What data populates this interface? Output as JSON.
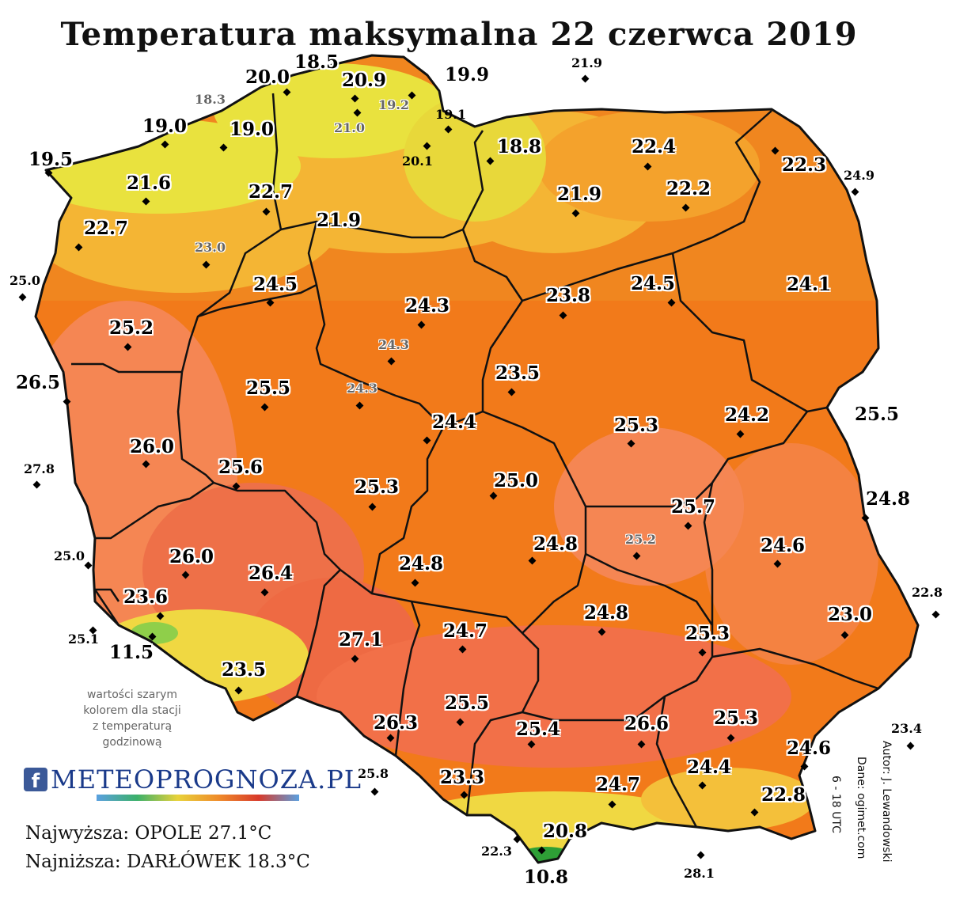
{
  "title": "Temperatura maksymalna 22 czerwca 2019",
  "colors": {
    "yellow": "#e9e23e",
    "light_orange": "#f4b534",
    "orange": "#f0861f",
    "dark_orange": "#f27a1a",
    "salmon": "#f58653",
    "red": "#ee6a43",
    "green": "#2e9f36",
    "border": "#111111"
  },
  "stations": [
    {
      "value": "18.5",
      "style": "big"
    },
    {
      "value": "20.0",
      "style": "big"
    },
    {
      "value": "20.9",
      "style": "big"
    },
    {
      "value": "19.9",
      "style": "big"
    },
    {
      "value": "21.9",
      "style": "outside"
    },
    {
      "value": "18.3",
      "style": "gray"
    },
    {
      "value": "19.2",
      "style": "gray"
    },
    {
      "value": "19.1",
      "style": "small"
    },
    {
      "value": "19.0",
      "style": "big"
    },
    {
      "value": "19.0",
      "style": "big"
    },
    {
      "value": "21.0",
      "style": "gray"
    },
    {
      "value": "20.1",
      "style": "small"
    },
    {
      "value": "18.8",
      "style": "big"
    },
    {
      "value": "22.4",
      "style": "big"
    },
    {
      "value": "19.5",
      "style": "big"
    },
    {
      "value": "22.3",
      "style": "big"
    },
    {
      "value": "24.9",
      "style": "outside"
    },
    {
      "value": "21.6",
      "style": "big"
    },
    {
      "value": "22.7",
      "style": "big"
    },
    {
      "value": "21.9",
      "style": "big"
    },
    {
      "value": "22.2",
      "style": "big"
    },
    {
      "value": "21.9",
      "style": "big"
    },
    {
      "value": "22.7",
      "style": "big"
    },
    {
      "value": "23.0",
      "style": "gray"
    },
    {
      "value": "25.0",
      "style": "outside"
    },
    {
      "value": "24.5",
      "style": "big"
    },
    {
      "value": "24.3",
      "style": "big"
    },
    {
      "value": "23.8",
      "style": "big"
    },
    {
      "value": "24.5",
      "style": "big"
    },
    {
      "value": "24.1",
      "style": "big"
    },
    {
      "value": "25.2",
      "style": "big"
    },
    {
      "value": "24.3",
      "style": "gray"
    },
    {
      "value": "23.5",
      "style": "big"
    },
    {
      "value": "26.5",
      "style": "big"
    },
    {
      "value": "25.5",
      "style": "big"
    },
    {
      "value": "24.3",
      "style": "gray"
    },
    {
      "value": "25.5",
      "style": "big"
    },
    {
      "value": "24.4",
      "style": "big"
    },
    {
      "value": "25.3",
      "style": "big"
    },
    {
      "value": "24.2",
      "style": "big"
    },
    {
      "value": "26.0",
      "style": "big"
    },
    {
      "value": "27.8",
      "style": "outside"
    },
    {
      "value": "25.6",
      "style": "big"
    },
    {
      "value": "25.3",
      "style": "big"
    },
    {
      "value": "25.0",
      "style": "big"
    },
    {
      "value": "24.8",
      "style": "big"
    },
    {
      "value": "25.7",
      "style": "big"
    },
    {
      "value": "25.2",
      "style": "gray"
    },
    {
      "value": "24.6",
      "style": "big"
    },
    {
      "value": "25.0",
      "style": "outside"
    },
    {
      "value": "26.0",
      "style": "big"
    },
    {
      "value": "24.8",
      "style": "big"
    },
    {
      "value": "26.4",
      "style": "big"
    },
    {
      "value": "24.8",
      "style": "big"
    },
    {
      "value": "23.6",
      "style": "big"
    },
    {
      "value": "22.8",
      "style": "outside"
    },
    {
      "value": "23.0",
      "style": "big"
    },
    {
      "value": "24.8",
      "style": "big"
    },
    {
      "value": "25.1",
      "style": "outside"
    },
    {
      "value": "11.5",
      "style": "big"
    },
    {
      "value": "27.1",
      "style": "big"
    },
    {
      "value": "24.7",
      "style": "big"
    },
    {
      "value": "25.3",
      "style": "big"
    },
    {
      "value": "23.5",
      "style": "big"
    },
    {
      "value": "25.5",
      "style": "big"
    },
    {
      "value": "26.3",
      "style": "big"
    },
    {
      "value": "25.4",
      "style": "big"
    },
    {
      "value": "26.6",
      "style": "big"
    },
    {
      "value": "25.3",
      "style": "big"
    },
    {
      "value": "23.4",
      "style": "outside"
    },
    {
      "value": "24.6",
      "style": "big"
    },
    {
      "value": "25.8",
      "style": "outside"
    },
    {
      "value": "23.3",
      "style": "big"
    },
    {
      "value": "24.4",
      "style": "big"
    },
    {
      "value": "24.7",
      "style": "big"
    },
    {
      "value": "22.8",
      "style": "big"
    },
    {
      "value": "20.8",
      "style": "big"
    },
    {
      "value": "22.3",
      "style": "outside"
    },
    {
      "value": "28.1",
      "style": "outside"
    },
    {
      "value": "10.8",
      "style": "big"
    }
  ],
  "note": [
    "wartości szarym",
    "kolorem dla stacji",
    "z temperaturą",
    "godzinową"
  ],
  "logo": {
    "icon_letter": "f",
    "text": "METEOPROGNOZA.PL"
  },
  "stats": {
    "highest": "Najwyższa: OPOLE 27.1°C",
    "lowest": "Najniższa: DARŁÓWEK 18.3°C"
  },
  "credits": [
    "Autor: J. Lewandowski",
    "Dane: ogimet.com",
    "6 - 18 UTC"
  ]
}
